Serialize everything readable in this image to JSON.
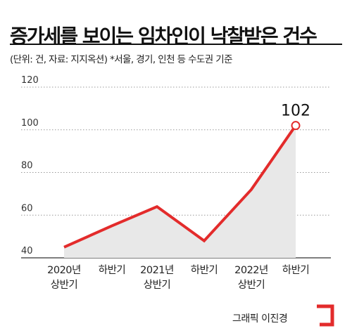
{
  "header": {
    "title": "증가세를 보이는 임차인이 낙찰받은 건수",
    "subtitle": "(단위: 건, 자료: 지지옥션) *서울, 경기, 인천 등 수도권 기준"
  },
  "chart_data": {
    "type": "area",
    "title": "증가세를 보이는 임차인이 낙찰받은 건수",
    "categories": [
      [
        "2020년",
        "상반기"
      ],
      [
        "하반기"
      ],
      [
        "2021년",
        "상반기"
      ],
      [
        "하반기"
      ],
      [
        "2022년",
        "상반기"
      ],
      [
        "하반기"
      ]
    ],
    "values": [
      45,
      55,
      64,
      48,
      72,
      102
    ],
    "ylim": [
      40,
      120
    ],
    "yticks": [
      "40",
      "60",
      "80",
      "100",
      "120"
    ],
    "grid": true,
    "annotations": [
      {
        "category_index": 5,
        "text": "102"
      }
    ],
    "colors": {
      "line": "#e32b2b",
      "area": "#e8e8e8",
      "grid": "#999999",
      "marker_fill": "#ffffff"
    }
  },
  "footer": {
    "credit": "그래픽 이진경",
    "logo_icon": "red-bracket-logo-icon",
    "logo_color": "#e32b2b"
  }
}
